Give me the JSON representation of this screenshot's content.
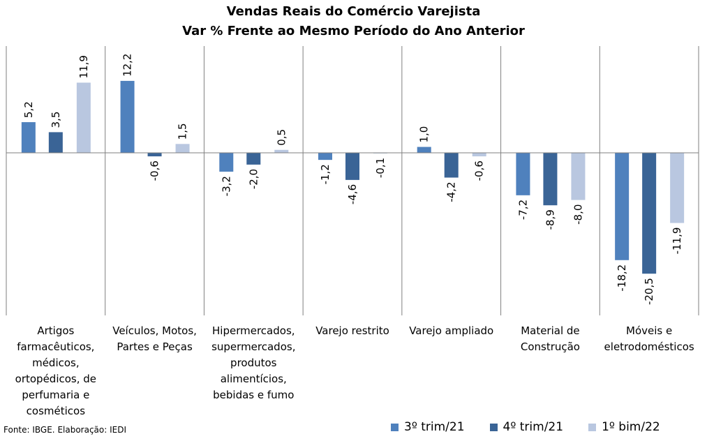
{
  "chart_data": {
    "type": "bar",
    "title": "Vendas Reais do Comércio Varejista",
    "subtitle": "Var % Frente ao Mesmo Período do Ano Anterior",
    "categories": [
      "Artigos farmacêuticos, médicos, ortopédicos, de perfumaria e cosméticos",
      "Veículos, Motos, Partes e Peças",
      "Hipermercados, supermercados, produtos alimentícios, bebidas e fumo",
      "Varejo restrito",
      "Varejo ampliado",
      "Material de Construção",
      "Móveis e eletrodomésticos"
    ],
    "category_lines": [
      [
        "Artigos",
        "farmacêuticos,",
        "médicos,",
        "ortopédicos, de",
        "perfumaria e",
        "cosméticos"
      ],
      [
        "Veículos, Motos,",
        "Partes e Peças"
      ],
      [
        "Hipermercados,",
        "supermercados,",
        "produtos",
        "alimentícios,",
        "bebidas e fumo"
      ],
      [
        "Varejo restrito"
      ],
      [
        "Varejo ampliado"
      ],
      [
        "Material de",
        "Construção"
      ],
      [
        "Móveis e",
        "eletrodomésticos"
      ]
    ],
    "series": [
      {
        "name": "3º trim/21",
        "color": "#4f81bd",
        "values": [
          5.2,
          12.2,
          -3.2,
          -1.2,
          1.0,
          -7.2,
          -18.2
        ]
      },
      {
        "name": "4º trim/21",
        "color": "#3a6496",
        "values": [
          3.5,
          -0.6,
          -2.0,
          -4.6,
          -4.2,
          -8.9,
          -20.5
        ]
      },
      {
        "name": "1º bim/22",
        "color": "#b9c7e0",
        "values": [
          11.9,
          1.5,
          0.5,
          -0.1,
          -0.6,
          -8.0,
          -11.9
        ]
      }
    ],
    "data_labels": [
      [
        "5,2",
        "12,2",
        "-3,2",
        "-1,2",
        "1,0",
        "-7,2",
        "-18,2"
      ],
      [
        "3,5",
        "-0,6",
        "-2,0",
        "-4,6",
        "-4,2",
        "-8,9",
        "-20,5"
      ],
      [
        "11,9",
        "1,5",
        "0,5",
        "-0,1",
        "-0,6",
        "-8,0",
        "-11,9"
      ]
    ],
    "legend_position": "bottom-right",
    "grid": false
  },
  "footer": "Fonte: IBGE. Elaboração: IEDI"
}
